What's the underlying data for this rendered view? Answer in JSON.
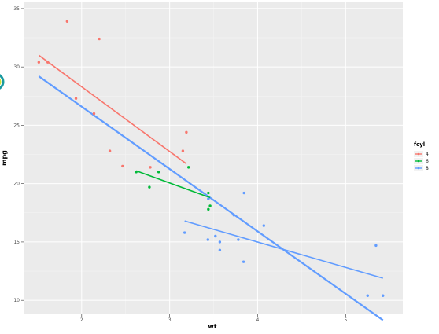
{
  "chart_data": {
    "type": "scatter",
    "title": "",
    "xlabel": "wt",
    "ylabel": "mpg",
    "xlim": [
      1.34,
      5.65
    ],
    "ylim": [
      8.8,
      35.6
    ],
    "x_ticks": [
      2,
      3,
      4,
      5
    ],
    "x_tick_labels": [
      "2",
      "3",
      "4",
      "5"
    ],
    "y_ticks": [
      10,
      15,
      20,
      25,
      30,
      35
    ],
    "y_tick_labels": [
      "10",
      "15",
      "20",
      "25",
      "30",
      "35"
    ],
    "grid": true,
    "legend": {
      "title": "fcyl",
      "position": "right"
    },
    "series": [
      {
        "name": "4",
        "color": "#F8766D",
        "points": [
          {
            "x": 2.32,
            "y": 22.8
          },
          {
            "x": 3.19,
            "y": 24.4
          },
          {
            "x": 3.15,
            "y": 22.8
          },
          {
            "x": 2.2,
            "y": 32.4
          },
          {
            "x": 1.835,
            "y": 33.9
          },
          {
            "x": 2.465,
            "y": 21.5
          },
          {
            "x": 1.935,
            "y": 27.3
          },
          {
            "x": 2.14,
            "y": 26.0
          },
          {
            "x": 1.513,
            "y": 30.4
          },
          {
            "x": 2.78,
            "y": 21.4
          },
          {
            "x": 1.615,
            "y": 30.4
          }
        ],
        "fit": {
          "x1": 1.513,
          "y1": 31.0,
          "x2": 3.19,
          "y2": 21.7
        }
      },
      {
        "name": "6",
        "color": "#00BA38",
        "points": [
          {
            "x": 2.62,
            "y": 21.0
          },
          {
            "x": 2.875,
            "y": 21.0
          },
          {
            "x": 3.215,
            "y": 21.4
          },
          {
            "x": 3.46,
            "y": 18.1
          },
          {
            "x": 3.44,
            "y": 19.2
          },
          {
            "x": 3.44,
            "y": 17.8
          },
          {
            "x": 2.77,
            "y": 19.7
          }
        ],
        "fit": {
          "x1": 2.62,
          "y1": 21.1,
          "x2": 3.46,
          "y2": 18.8
        }
      },
      {
        "name": "8",
        "color": "#619CFF",
        "points": [
          {
            "x": 3.44,
            "y": 18.7
          },
          {
            "x": 3.57,
            "y": 14.3
          },
          {
            "x": 4.07,
            "y": 16.4
          },
          {
            "x": 3.73,
            "y": 17.3
          },
          {
            "x": 3.78,
            "y": 15.2
          },
          {
            "x": 5.25,
            "y": 10.4
          },
          {
            "x": 5.424,
            "y": 10.4
          },
          {
            "x": 5.345,
            "y": 14.7
          },
          {
            "x": 3.52,
            "y": 15.5
          },
          {
            "x": 3.435,
            "y": 15.2
          },
          {
            "x": 3.84,
            "y": 13.3
          },
          {
            "x": 3.845,
            "y": 19.2
          },
          {
            "x": 3.17,
            "y": 15.8
          },
          {
            "x": 3.57,
            "y": 15.0
          }
        ],
        "fit": {
          "x1": 3.17,
          "y1": 16.8,
          "x2": 5.424,
          "y2": 11.9
        }
      }
    ],
    "overall_fit": {
      "color": "#619CFF",
      "x1": 1.513,
      "y1": 29.2,
      "x2": 5.424,
      "y2": 8.3
    }
  }
}
